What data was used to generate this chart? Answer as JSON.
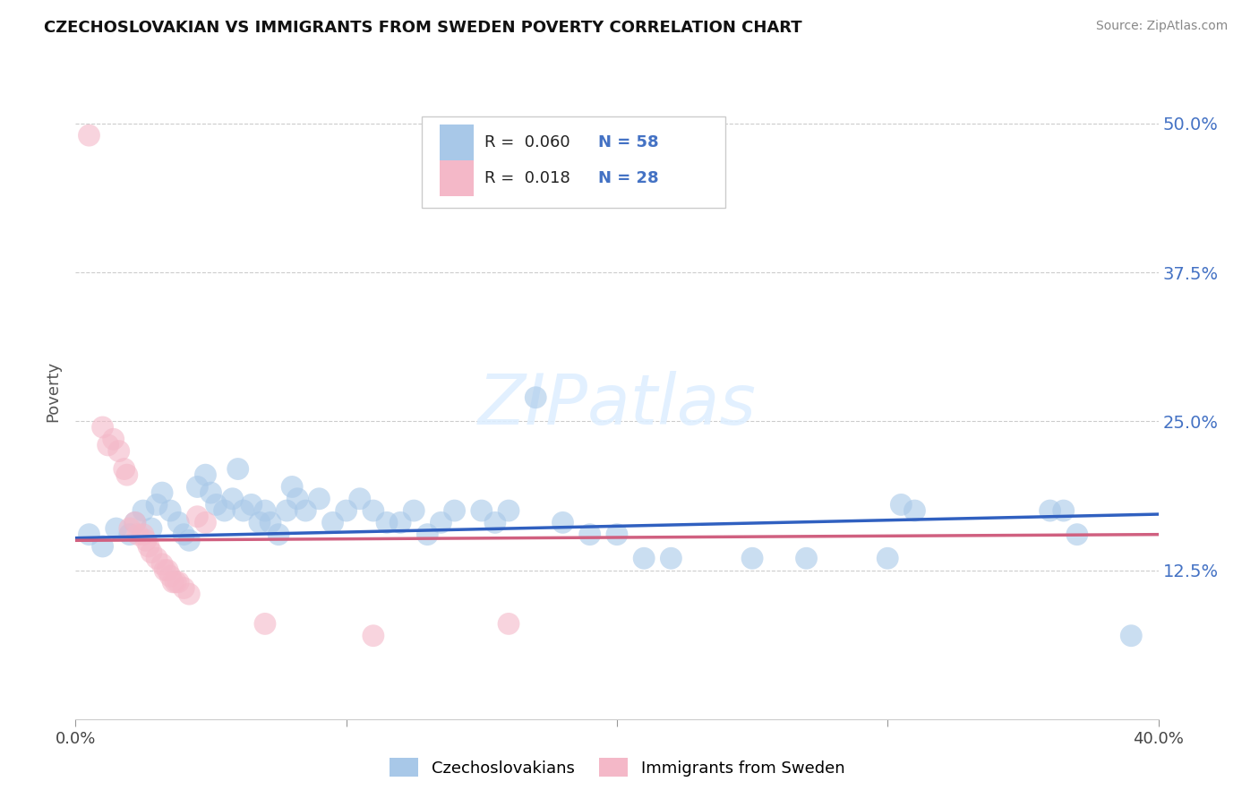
{
  "title": "CZECHOSLOVAKIAN VS IMMIGRANTS FROM SWEDEN POVERTY CORRELATION CHART",
  "source": "Source: ZipAtlas.com",
  "ylabel": "Poverty",
  "xlim": [
    0.0,
    0.4
  ],
  "ylim": [
    0.0,
    0.55
  ],
  "yticks": [
    0.0,
    0.125,
    0.25,
    0.375,
    0.5
  ],
  "ytick_labels": [
    "",
    "12.5%",
    "25.0%",
    "37.5%",
    "50.0%"
  ],
  "xticks": [
    0.0,
    0.1,
    0.2,
    0.3,
    0.4
  ],
  "xtick_labels": [
    "0.0%",
    "",
    "",
    "",
    "40.0%"
  ],
  "legend_r1": "0.060",
  "legend_n1": "58",
  "legend_r2": "0.018",
  "legend_n2": "28",
  "blue_color": "#a8c8e8",
  "pink_color": "#f4b8c8",
  "line_blue": "#3060c0",
  "line_pink": "#d06080",
  "blue_scatter": [
    [
      0.005,
      0.155
    ],
    [
      0.01,
      0.145
    ],
    [
      0.015,
      0.16
    ],
    [
      0.02,
      0.155
    ],
    [
      0.022,
      0.165
    ],
    [
      0.025,
      0.175
    ],
    [
      0.028,
      0.16
    ],
    [
      0.03,
      0.18
    ],
    [
      0.032,
      0.19
    ],
    [
      0.035,
      0.175
    ],
    [
      0.038,
      0.165
    ],
    [
      0.04,
      0.155
    ],
    [
      0.042,
      0.15
    ],
    [
      0.045,
      0.195
    ],
    [
      0.048,
      0.205
    ],
    [
      0.05,
      0.19
    ],
    [
      0.052,
      0.18
    ],
    [
      0.055,
      0.175
    ],
    [
      0.058,
      0.185
    ],
    [
      0.06,
      0.21
    ],
    [
      0.062,
      0.175
    ],
    [
      0.065,
      0.18
    ],
    [
      0.068,
      0.165
    ],
    [
      0.07,
      0.175
    ],
    [
      0.072,
      0.165
    ],
    [
      0.075,
      0.155
    ],
    [
      0.078,
      0.175
    ],
    [
      0.08,
      0.195
    ],
    [
      0.082,
      0.185
    ],
    [
      0.085,
      0.175
    ],
    [
      0.09,
      0.185
    ],
    [
      0.095,
      0.165
    ],
    [
      0.1,
      0.175
    ],
    [
      0.105,
      0.185
    ],
    [
      0.11,
      0.175
    ],
    [
      0.115,
      0.165
    ],
    [
      0.12,
      0.165
    ],
    [
      0.125,
      0.175
    ],
    [
      0.13,
      0.155
    ],
    [
      0.135,
      0.165
    ],
    [
      0.14,
      0.175
    ],
    [
      0.15,
      0.175
    ],
    [
      0.155,
      0.165
    ],
    [
      0.16,
      0.175
    ],
    [
      0.17,
      0.27
    ],
    [
      0.18,
      0.165
    ],
    [
      0.19,
      0.155
    ],
    [
      0.2,
      0.155
    ],
    [
      0.21,
      0.135
    ],
    [
      0.22,
      0.135
    ],
    [
      0.25,
      0.135
    ],
    [
      0.27,
      0.135
    ],
    [
      0.3,
      0.135
    ],
    [
      0.305,
      0.18
    ],
    [
      0.31,
      0.175
    ],
    [
      0.36,
      0.175
    ],
    [
      0.365,
      0.175
    ],
    [
      0.37,
      0.155
    ],
    [
      0.39,
      0.07
    ]
  ],
  "pink_scatter": [
    [
      0.005,
      0.49
    ],
    [
      0.01,
      0.245
    ],
    [
      0.012,
      0.23
    ],
    [
      0.014,
      0.235
    ],
    [
      0.016,
      0.225
    ],
    [
      0.018,
      0.21
    ],
    [
      0.019,
      0.205
    ],
    [
      0.02,
      0.16
    ],
    [
      0.022,
      0.165
    ],
    [
      0.023,
      0.155
    ],
    [
      0.025,
      0.155
    ],
    [
      0.026,
      0.15
    ],
    [
      0.027,
      0.145
    ],
    [
      0.028,
      0.14
    ],
    [
      0.03,
      0.135
    ],
    [
      0.032,
      0.13
    ],
    [
      0.033,
      0.125
    ],
    [
      0.034,
      0.125
    ],
    [
      0.035,
      0.12
    ],
    [
      0.036,
      0.115
    ],
    [
      0.037,
      0.115
    ],
    [
      0.038,
      0.115
    ],
    [
      0.04,
      0.11
    ],
    [
      0.042,
      0.105
    ],
    [
      0.045,
      0.17
    ],
    [
      0.048,
      0.165
    ],
    [
      0.07,
      0.08
    ],
    [
      0.11,
      0.07
    ],
    [
      0.16,
      0.08
    ]
  ]
}
